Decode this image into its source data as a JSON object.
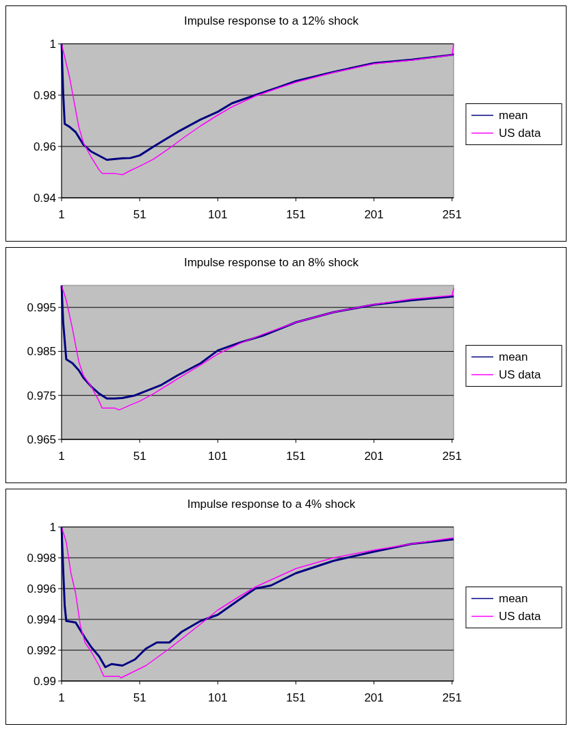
{
  "chart_data": [
    {
      "type": "line",
      "title": "Impulse response to a 12% shock",
      "xlim": [
        1,
        252
      ],
      "xticks": [
        1,
        51,
        101,
        151,
        201,
        251
      ],
      "ylim": [
        0.94,
        1
      ],
      "yticks": [
        0.94,
        0.96,
        0.98,
        1
      ],
      "grid": "y",
      "legend": "right",
      "series": [
        {
          "name": "mean",
          "color": "#000080",
          "x": [
            1,
            2,
            3,
            6,
            10,
            15,
            20,
            30,
            40,
            45,
            51,
            60,
            76,
            90,
            101,
            110,
            125,
            140,
            151,
            175,
            201,
            225,
            251,
            252
          ],
          "values": [
            1,
            0.981,
            0.9688,
            0.9677,
            0.9656,
            0.9607,
            0.958,
            0.9548,
            0.9554,
            0.9555,
            0.9565,
            0.96,
            0.9659,
            0.9705,
            0.9735,
            0.9768,
            0.98,
            0.9831,
            0.9855,
            0.989,
            0.9925,
            0.9938,
            0.9957,
            0.996
          ]
        },
        {
          "name": "US data",
          "color": "#ff00ff",
          "x": [
            1,
            4,
            6,
            9,
            12,
            15,
            20,
            25,
            27,
            35,
            40,
            45,
            51,
            60,
            70,
            80,
            90,
            101,
            110,
            125,
            140,
            151,
            175,
            201,
            225,
            251,
            252
          ],
          "values": [
            1,
            0.9922,
            0.9873,
            0.9775,
            0.9677,
            0.9614,
            0.9558,
            0.9509,
            0.9495,
            0.9495,
            0.949,
            0.9506,
            0.9523,
            0.9551,
            0.9593,
            0.9638,
            0.968,
            0.9722,
            0.9754,
            0.9796,
            0.9828,
            0.985,
            0.9888,
            0.9922,
            0.9936,
            0.9956,
            1
          ]
        }
      ]
    },
    {
      "type": "line",
      "title": "Impulse response to an 8% shock",
      "xlim": [
        1,
        252
      ],
      "xticks": [
        1,
        51,
        101,
        151,
        201,
        251
      ],
      "ylim": [
        0.965,
        1
      ],
      "yticks": [
        0.965,
        0.975,
        0.985,
        0.995
      ],
      "grid": "y",
      "legend": "right",
      "series": [
        {
          "name": "mean",
          "color": "#000080",
          "x": [
            1,
            2,
            4,
            8,
            12,
            15,
            20,
            25,
            30,
            35,
            40,
            48,
            55,
            65,
            75,
            90,
            101,
            115,
            130,
            151,
            175,
            201,
            225,
            252
          ],
          "values": [
            1,
            0.9917,
            0.9832,
            0.9823,
            0.9807,
            0.979,
            0.977,
            0.9754,
            0.9743,
            0.9743,
            0.9744,
            0.975,
            0.976,
            0.9774,
            0.9795,
            0.9823,
            0.9852,
            0.987,
            0.9886,
            0.9916,
            0.9939,
            0.9956,
            0.9966,
            0.9975
          ]
        },
        {
          "name": "US data",
          "color": "#ff00ff",
          "x": [
            1,
            4,
            8,
            12,
            15,
            20,
            25,
            27,
            35,
            38,
            45,
            51,
            60,
            75,
            90,
            101,
            115,
            130,
            151,
            175,
            201,
            225,
            251,
            252
          ],
          "values": [
            1,
            0.9966,
            0.9901,
            0.9827,
            0.9795,
            0.977,
            0.9737,
            0.9721,
            0.9721,
            0.9717,
            0.9728,
            0.9737,
            0.9754,
            0.9787,
            0.9819,
            0.9844,
            0.9868,
            0.9889,
            0.9916,
            0.9939,
            0.9957,
            0.9969,
            0.9977,
            0.9993
          ]
        }
      ]
    },
    {
      "type": "line",
      "title": "Impulse response to a 4% shock",
      "xlim": [
        1,
        252
      ],
      "xticks": [
        1,
        51,
        101,
        151,
        201,
        251
      ],
      "ylim": [
        0.99,
        1
      ],
      "yticks": [
        0.99,
        0.992,
        0.994,
        0.996,
        0.998,
        1
      ],
      "grid": "y",
      "legend": "right",
      "series": [
        {
          "name": "mean",
          "color": "#000080",
          "x": [
            1,
            2,
            3,
            4,
            10,
            13,
            16,
            20,
            25,
            29,
            33,
            40,
            48,
            55,
            62,
            70,
            78,
            90,
            101,
            115,
            125,
            135,
            151,
            175,
            201,
            225,
            252
          ],
          "values": [
            1,
            0.9973,
            0.9949,
            0.9939,
            0.9938,
            0.9933,
            0.9928,
            0.9922,
            0.9916,
            0.9909,
            0.9911,
            0.991,
            0.9914,
            0.9921,
            0.9925,
            0.9925,
            0.9932,
            0.9939,
            0.9943,
            0.9953,
            0.996,
            0.9962,
            0.997,
            0.9978,
            0.9984,
            0.9989,
            0.9992
          ]
        },
        {
          "name": "US data",
          "color": "#ff00ff",
          "x": [
            1,
            4,
            7,
            10,
            13,
            16,
            20,
            25,
            28,
            38,
            39,
            45,
            55,
            70,
            90,
            101,
            115,
            125,
            151,
            175,
            201,
            225,
            252
          ],
          "values": [
            1,
            0.999,
            0.997,
            0.9957,
            0.9936,
            0.9925,
            0.9919,
            0.991,
            0.9903,
            0.9903,
            0.9902,
            0.9905,
            0.991,
            0.9921,
            0.9937,
            0.9946,
            0.9955,
            0.9961,
            0.9973,
            0.998,
            0.9985,
            0.9989,
            0.9993
          ]
        }
      ]
    }
  ]
}
